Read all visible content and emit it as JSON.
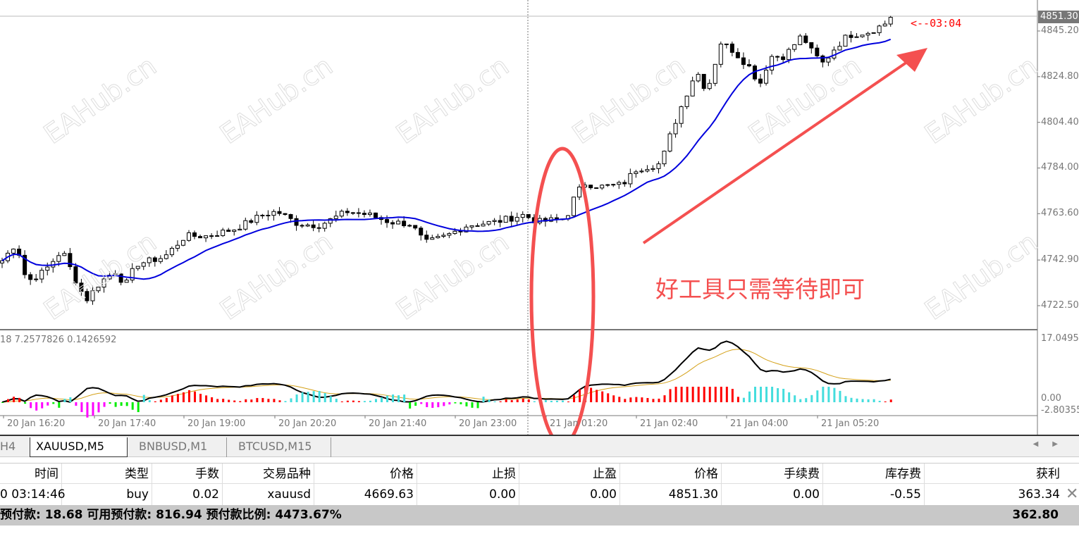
{
  "chart": {
    "symbol_tab_active": "XAUUSD,M5",
    "current_price": "4851.30",
    "countdown": "<--03:04",
    "price_axis": [
      "4845.20",
      "4824.80",
      "4804.40",
      "4784.00",
      "4763.60",
      "4742.90",
      "4722.50"
    ],
    "indicator_values": "18 7.2577826 0.1426592",
    "indicator_axis": [
      "17.04954",
      "0.00",
      "-2.80355"
    ],
    "time_axis": [
      "20 Jan 16:20",
      "20 Jan 17:40",
      "20 Jan 19:00",
      "20 Jan 20:20",
      "20 Jan 21:40",
      "20 Jan 23:00",
      "21 Jan 01:20",
      "21 Jan 02:40",
      "21 Jan 04:00",
      "21 Jan 05:20"
    ],
    "anchor_closes": [
      4742.6,
      4750.5,
      4733.2,
      4737.9,
      4747.3,
      4730.0,
      4725.3,
      4733.2,
      4737.9,
      4731.6,
      4741.0,
      4744.2,
      4753.6,
      4753.6,
      4756.8,
      4763.1,
      4764.6,
      4759.0,
      4758.4,
      4764.6,
      4763.1,
      4759.9,
      4759.0,
      4750.5,
      4753.6,
      4758.4,
      4759.9,
      4763.1,
      4759.9,
      4761.5,
      4770.9,
      4777.2,
      4775.7,
      4776.6,
      4783.5,
      4786.0,
      4796.1,
      4808.7,
      4827.6,
      4818.1,
      4840.2,
      4837.0,
      4829.2,
      4821.3,
      4833.9,
      4833.9,
      4843.3,
      4835.4,
      4830.7,
      4837.0,
      4843.3,
      4844.8,
      4848.0,
      4851.3
    ],
    "ma_color": "#0000dd",
    "annotation_color": "#f45050",
    "annotation_text": "好工具只需等待即可",
    "watermark": "EAHub.cn"
  },
  "tabs": [
    "H4",
    "XAUUSD,M5",
    "BNBUSD,M1",
    "BTCUSD,M15"
  ],
  "table": {
    "headers": [
      "时间",
      "类型",
      "手数",
      "交易品种",
      "价格",
      "止损",
      "止盈",
      "价格",
      "手续费",
      "库存费",
      "获利"
    ],
    "row": [
      "0 03:14:46",
      "buy",
      "0.02",
      "xauusd",
      "4669.63",
      "0.00",
      "0.00",
      "4851.30",
      "0.00",
      "-0.55",
      "363.34"
    ],
    "summary": "预付款: 18.68  可用预付款: 816.94  预付款比例: 4473.67%",
    "summary_total": "362.80"
  }
}
